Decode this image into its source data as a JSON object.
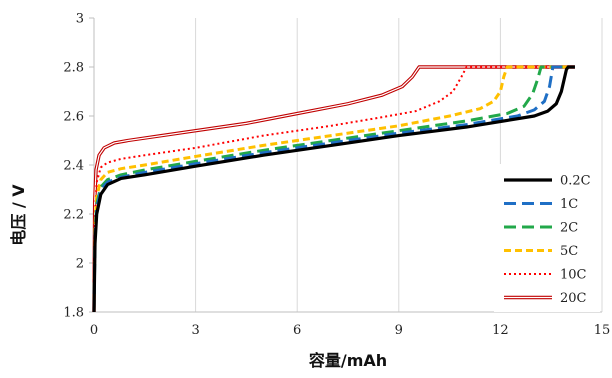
{
  "chart_data": {
    "type": "line",
    "xlabel": "容量/mAh",
    "ylabel": "电压 / V",
    "xlim": [
      0,
      15
    ],
    "ylim": [
      1.8,
      3.0
    ],
    "xticks": [
      0,
      3,
      6,
      9,
      12,
      15
    ],
    "yticks": [
      1.8,
      2.0,
      2.2,
      2.4,
      2.6,
      2.8,
      3.0
    ],
    "ytick_labels": [
      "1.8",
      "2",
      "2.2",
      "2.4",
      "2.6",
      "2.8",
      "3"
    ],
    "grid": "vertical",
    "legend_position": "bottom-right",
    "series": [
      {
        "name": "0.2C",
        "color": "#000000",
        "style": "solid-thick",
        "points": [
          [
            0,
            1.8
          ],
          [
            0.03,
            2.08
          ],
          [
            0.08,
            2.2
          ],
          [
            0.2,
            2.28
          ],
          [
            0.4,
            2.32
          ],
          [
            0.8,
            2.345
          ],
          [
            1.5,
            2.36
          ],
          [
            3,
            2.395
          ],
          [
            5,
            2.44
          ],
          [
            7,
            2.48
          ],
          [
            9,
            2.52
          ],
          [
            11,
            2.555
          ],
          [
            13,
            2.6
          ],
          [
            13.4,
            2.62
          ],
          [
            13.65,
            2.65
          ],
          [
            13.8,
            2.7
          ],
          [
            13.95,
            2.79
          ],
          [
            14.0,
            2.8
          ],
          [
            14.2,
            2.8
          ]
        ]
      },
      {
        "name": "1C",
        "color": "#1f6fc5",
        "style": "long-dash",
        "points": [
          [
            0,
            1.8
          ],
          [
            0.03,
            2.1
          ],
          [
            0.08,
            2.22
          ],
          [
            0.2,
            2.3
          ],
          [
            0.4,
            2.33
          ],
          [
            0.8,
            2.35
          ],
          [
            1.5,
            2.37
          ],
          [
            3,
            2.405
          ],
          [
            5,
            2.45
          ],
          [
            7,
            2.49
          ],
          [
            9,
            2.53
          ],
          [
            11,
            2.565
          ],
          [
            12.5,
            2.6
          ],
          [
            13.0,
            2.625
          ],
          [
            13.3,
            2.66
          ],
          [
            13.45,
            2.72
          ],
          [
            13.55,
            2.8
          ],
          [
            14.2,
            2.8
          ]
        ]
      },
      {
        "name": "2C",
        "color": "#22a84a",
        "style": "long-dash",
        "points": [
          [
            0,
            1.8
          ],
          [
            0.03,
            2.12
          ],
          [
            0.08,
            2.24
          ],
          [
            0.2,
            2.31
          ],
          [
            0.4,
            2.34
          ],
          [
            0.8,
            2.36
          ],
          [
            1.5,
            2.38
          ],
          [
            3,
            2.415
          ],
          [
            5,
            2.46
          ],
          [
            7,
            2.5
          ],
          [
            9,
            2.54
          ],
          [
            11,
            2.58
          ],
          [
            12.2,
            2.61
          ],
          [
            12.7,
            2.64
          ],
          [
            12.95,
            2.69
          ],
          [
            13.1,
            2.75
          ],
          [
            13.2,
            2.8
          ],
          [
            14.2,
            2.8
          ]
        ]
      },
      {
        "name": "5C",
        "color": "#ffc000",
        "style": "dash",
        "points": [
          [
            0,
            1.8
          ],
          [
            0.03,
            2.15
          ],
          [
            0.08,
            2.27
          ],
          [
            0.2,
            2.34
          ],
          [
            0.4,
            2.37
          ],
          [
            0.8,
            2.385
          ],
          [
            1.5,
            2.4
          ],
          [
            3,
            2.435
          ],
          [
            5,
            2.48
          ],
          [
            7,
            2.52
          ],
          [
            9,
            2.56
          ],
          [
            10.5,
            2.6
          ],
          [
            11.4,
            2.63
          ],
          [
            11.8,
            2.66
          ],
          [
            12.0,
            2.7
          ],
          [
            12.1,
            2.76
          ],
          [
            12.2,
            2.8
          ],
          [
            14.2,
            2.8
          ]
        ]
      },
      {
        "name": "10C",
        "color": "#ff0000",
        "style": "dot",
        "points": [
          [
            0,
            1.8
          ],
          [
            0.03,
            2.2
          ],
          [
            0.08,
            2.33
          ],
          [
            0.2,
            2.39
          ],
          [
            0.4,
            2.41
          ],
          [
            0.8,
            2.425
          ],
          [
            1.5,
            2.44
          ],
          [
            3,
            2.47
          ],
          [
            5,
            2.52
          ],
          [
            7,
            2.56
          ],
          [
            8.5,
            2.595
          ],
          [
            9.5,
            2.62
          ],
          [
            10.2,
            2.66
          ],
          [
            10.6,
            2.7
          ],
          [
            10.85,
            2.76
          ],
          [
            11.0,
            2.8
          ],
          [
            14.2,
            2.8
          ]
        ]
      },
      {
        "name": "20C",
        "color": "#c00000",
        "style": "double",
        "points": [
          [
            0,
            1.8
          ],
          [
            0.02,
            2.25
          ],
          [
            0.06,
            2.38
          ],
          [
            0.15,
            2.44
          ],
          [
            0.3,
            2.47
          ],
          [
            0.6,
            2.49
          ],
          [
            1.0,
            2.5
          ],
          [
            2,
            2.52
          ],
          [
            3,
            2.54
          ],
          [
            4.5,
            2.57
          ],
          [
            6,
            2.61
          ],
          [
            7.5,
            2.65
          ],
          [
            8.5,
            2.685
          ],
          [
            9.1,
            2.72
          ],
          [
            9.4,
            2.76
          ],
          [
            9.6,
            2.8
          ],
          [
            14.2,
            2.8
          ]
        ]
      }
    ]
  }
}
